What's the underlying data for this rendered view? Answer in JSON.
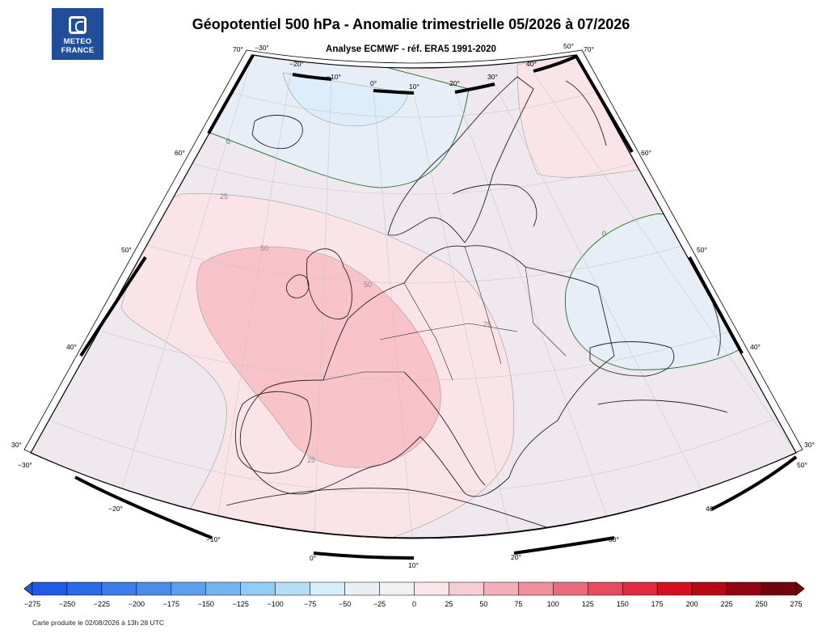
{
  "logo": {
    "line1": "METEO",
    "line2": "FRANCE"
  },
  "title": "Géopotentiel 500 hPa - Anomalie trimestrielle 05/2026 à 07/2026",
  "subtitle": "Analyse ECMWF - réf. ERA5 1991-2020",
  "footer": "Carte produite le 02/08/2026 à 13h 28 UTC",
  "map": {
    "bottom_lon_labels": [
      "−30°",
      "−20°",
      "−10°",
      "0°",
      "10°",
      "20°",
      "30°",
      "40°",
      "50°"
    ],
    "top_lon_labels": [
      "−30°",
      "−20°",
      "−10°",
      "0°",
      "10°",
      "20°",
      "30°",
      "40°",
      "50°"
    ],
    "left_lat_labels": [
      "30°",
      "40°",
      "50°",
      "60°",
      "70°"
    ],
    "right_lat_labels": [
      "30°",
      "40°",
      "50°",
      "60°",
      "70°"
    ],
    "contour_labels": [
      {
        "text": "0",
        "color": "#2e7d32"
      },
      {
        "text": "0",
        "color": "#2e7d32"
      },
      {
        "text": "25",
        "color": "#888888"
      },
      {
        "text": "50",
        "color": "#888888"
      },
      {
        "text": "50",
        "color": "#888888"
      },
      {
        "text": "25",
        "color": "#888888"
      },
      {
        "text": "25",
        "color": "#888888"
      }
    ],
    "fill_colors": {
      "neg_weak": "#e8eef8",
      "neg_light": "#dceefb",
      "near_zero": "#efe8ee",
      "pos_25": "#fbe4e8",
      "pos_50": "#f9c3ca",
      "border": "#222222",
      "zero_contour": "#2e7d32"
    }
  },
  "colorbar": {
    "labels": [
      "−275",
      "−250",
      "−225",
      "−200",
      "−175",
      "−150",
      "−125",
      "−100",
      "−75",
      "−50",
      "−25",
      "0",
      "25",
      "50",
      "75",
      "100",
      "125",
      "150",
      "175",
      "200",
      "225",
      "250",
      "275"
    ],
    "colors": [
      "#1f5ce6",
      "#2a6be8",
      "#3a7cea",
      "#4a8cec",
      "#5aa0ee",
      "#74b6f1",
      "#92cbf4",
      "#b5def8",
      "#d6eefb",
      "#e9eff5",
      "#f4f1f3",
      "#fbe6ea",
      "#f7ccd3",
      "#f4b0ba",
      "#f08e9c",
      "#eb6a7b",
      "#e64a5c",
      "#e02a3d",
      "#d4101f",
      "#b50a14",
      "#930610",
      "#74040b"
    ]
  }
}
